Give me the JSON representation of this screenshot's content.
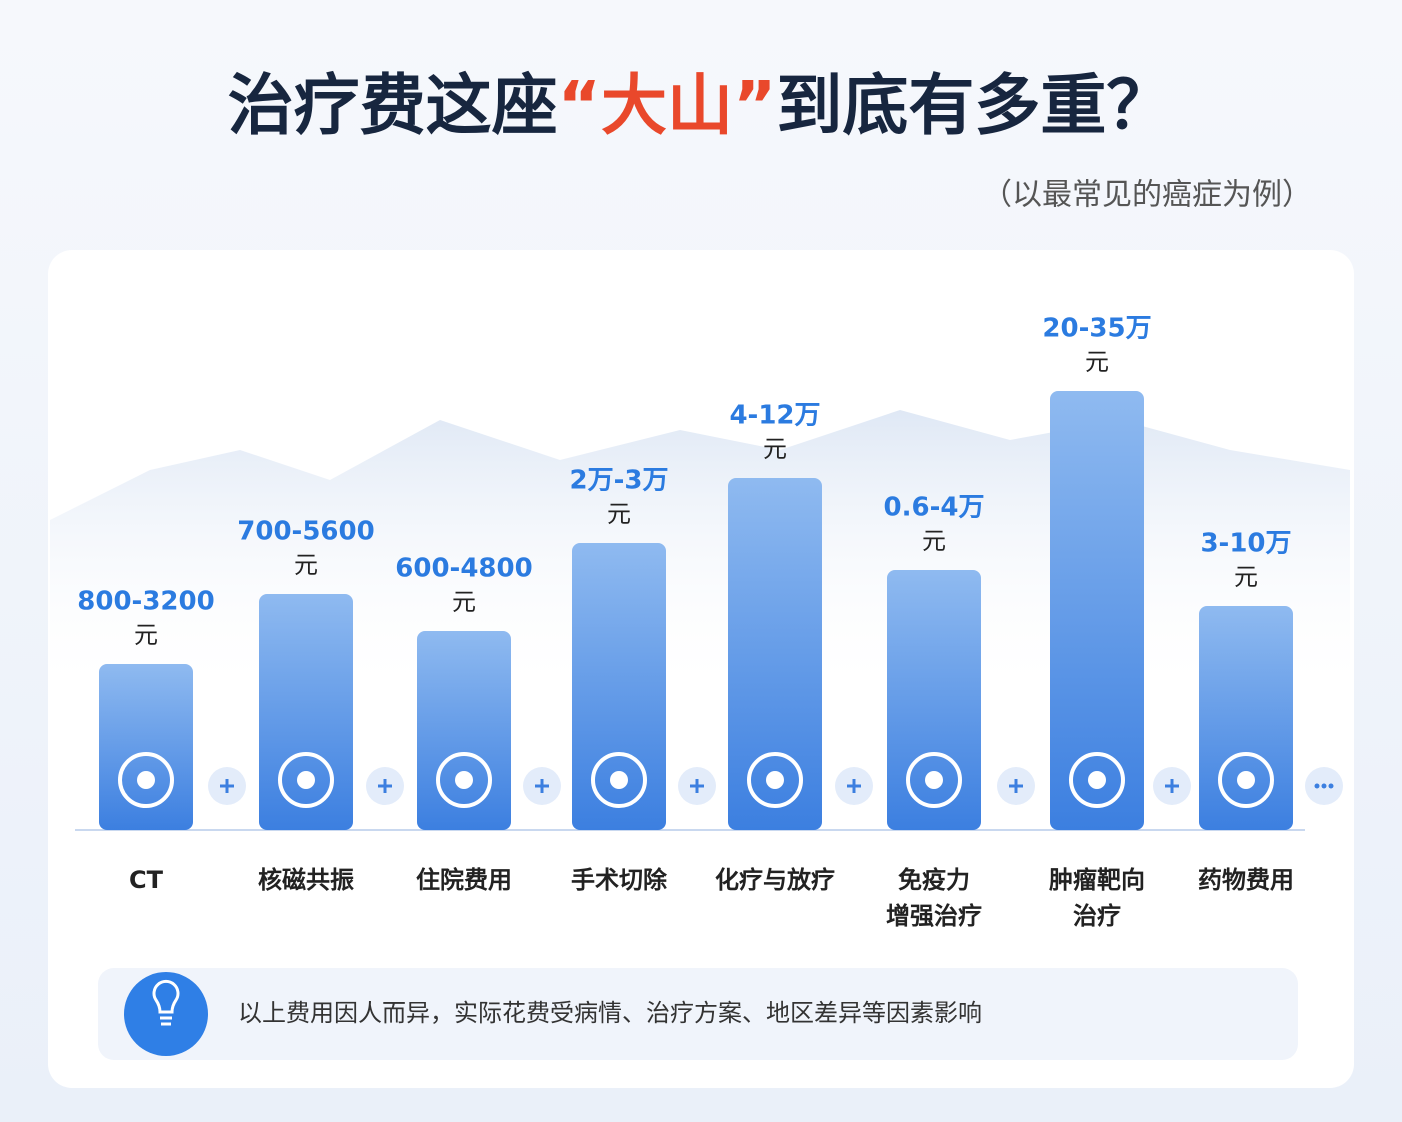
{
  "header": {
    "title_parts": [
      "治疗费这座",
      "“大山”",
      "到底有多重？"
    ],
    "subtitle": "（以最常见的癌症为例）"
  },
  "items": [
    {
      "amount": "800-3200",
      "unit": "元",
      "label": [
        "CT"
      ]
    },
    {
      "amount": "700-5600",
      "unit": "元",
      "label": [
        "核磁共振"
      ]
    },
    {
      "amount": "600-4800",
      "unit": "元",
      "label": [
        "住院费用"
      ]
    },
    {
      "amount": "2万-3万",
      "unit": "元",
      "label": [
        "手术切除"
      ]
    },
    {
      "amount": "4-12万",
      "unit": "元",
      "label": [
        "化疗与放疗"
      ]
    },
    {
      "amount": "0.6-4万",
      "unit": "元",
      "label": [
        "免疫力",
        "增强治疗"
      ]
    },
    {
      "amount": "20-35万",
      "unit": "元",
      "label": [
        "肿瘤靶向",
        "治疗"
      ]
    },
    {
      "amount": "3-10万",
      "unit": "元",
      "label": [
        "药物费用"
      ]
    }
  ],
  "note": "以上费用因人而异，实际花费受病情、治疗方案、地区差异等因素影响"
}
